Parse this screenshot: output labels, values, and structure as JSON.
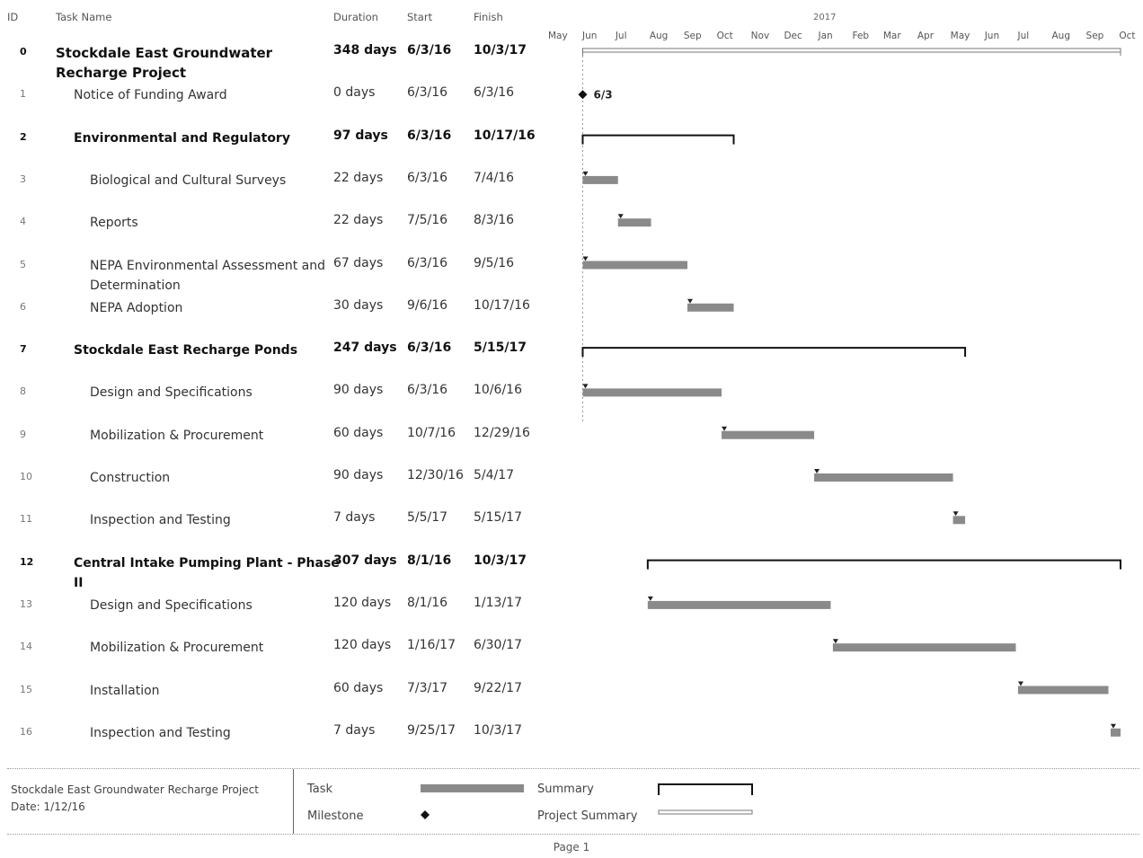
{
  "columns": {
    "id": "ID",
    "name": "Task Name",
    "duration": "Duration",
    "start": "Start",
    "finish": "Finish"
  },
  "timescale": {
    "year_label": "2017",
    "months": [
      "May",
      "Jun",
      "Jul",
      "Aug",
      "Sep",
      "Oct",
      "Nov",
      "Dec",
      "Jan",
      "Feb",
      "Mar",
      "Apr",
      "May",
      "Jun",
      "Jul",
      "Aug",
      "Sep",
      "Oct"
    ]
  },
  "chart_data": {
    "type": "gantt",
    "tasks": [
      {
        "id": "0",
        "name": "Stockdale East Groundwater Recharge Project",
        "duration": "348 days",
        "start": "6/3/16",
        "finish": "10/3/17",
        "kind": "project",
        "level": 0
      },
      {
        "id": "1",
        "name": "Notice of Funding Award",
        "duration": "0 days",
        "start": "6/3/16",
        "finish": "6/3/16",
        "kind": "milestone",
        "level": 1,
        "label": "6/3"
      },
      {
        "id": "2",
        "name": "Environmental and Regulatory",
        "duration": "97 days",
        "start": "6/3/16",
        "finish": "10/17/16",
        "kind": "summary",
        "level": 1
      },
      {
        "id": "3",
        "name": "Biological and Cultural Surveys",
        "duration": "22 days",
        "start": "6/3/16",
        "finish": "7/4/16",
        "kind": "task",
        "level": 2
      },
      {
        "id": "4",
        "name": "Reports",
        "duration": "22 days",
        "start": "7/5/16",
        "finish": "8/3/16",
        "kind": "task",
        "level": 2
      },
      {
        "id": "5",
        "name": "NEPA Environmental Assessment and Determination",
        "duration": "67 days",
        "start": "6/3/16",
        "finish": "9/5/16",
        "kind": "task",
        "level": 2
      },
      {
        "id": "6",
        "name": "NEPA Adoption",
        "duration": "30 days",
        "start": "9/6/16",
        "finish": "10/17/16",
        "kind": "task",
        "level": 2
      },
      {
        "id": "7",
        "name": "Stockdale East Recharge Ponds",
        "duration": "247 days",
        "start": "6/3/16",
        "finish": "5/15/17",
        "kind": "summary",
        "level": 1
      },
      {
        "id": "8",
        "name": "Design and Specifications",
        "duration": "90 days",
        "start": "6/3/16",
        "finish": "10/6/16",
        "kind": "task",
        "level": 2
      },
      {
        "id": "9",
        "name": "Mobilization & Procurement",
        "duration": "60 days",
        "start": "10/7/16",
        "finish": "12/29/16",
        "kind": "task",
        "level": 2
      },
      {
        "id": "10",
        "name": "Construction",
        "duration": "90 days",
        "start": "12/30/16",
        "finish": "5/4/17",
        "kind": "task",
        "level": 2
      },
      {
        "id": "11",
        "name": "Inspection and Testing",
        "duration": "7 days",
        "start": "5/5/17",
        "finish": "5/15/17",
        "kind": "task",
        "level": 2
      },
      {
        "id": "12",
        "name": "Central Intake Pumping Plant - Phase II",
        "duration": "307 days",
        "start": "8/1/16",
        "finish": "10/3/17",
        "kind": "summary",
        "level": 1
      },
      {
        "id": "13",
        "name": "Design and Specifications",
        "duration": "120 days",
        "start": "8/1/16",
        "finish": "1/13/17",
        "kind": "task",
        "level": 2
      },
      {
        "id": "14",
        "name": "Mobilization & Procurement",
        "duration": "120 days",
        "start": "1/16/17",
        "finish": "6/30/17",
        "kind": "task",
        "level": 2
      },
      {
        "id": "15",
        "name": "Installation",
        "duration": "60 days",
        "start": "7/3/17",
        "finish": "9/22/17",
        "kind": "task",
        "level": 2
      },
      {
        "id": "16",
        "name": "Inspection and Testing",
        "duration": "7 days",
        "start": "9/25/17",
        "finish": "10/3/17",
        "kind": "task",
        "level": 2
      }
    ]
  },
  "footer": {
    "project": "Stockdale East Groundwater Recharge Project",
    "date": "Date: 1/12/16",
    "legend": {
      "task": "Task",
      "milestone": "Milestone",
      "summary": "Summary",
      "project_summary": "Project Summary"
    },
    "page": "Page 1"
  },
  "colors": {
    "task_bar": "#8a8a8a",
    "summary": "#111111",
    "text": "#333333"
  }
}
